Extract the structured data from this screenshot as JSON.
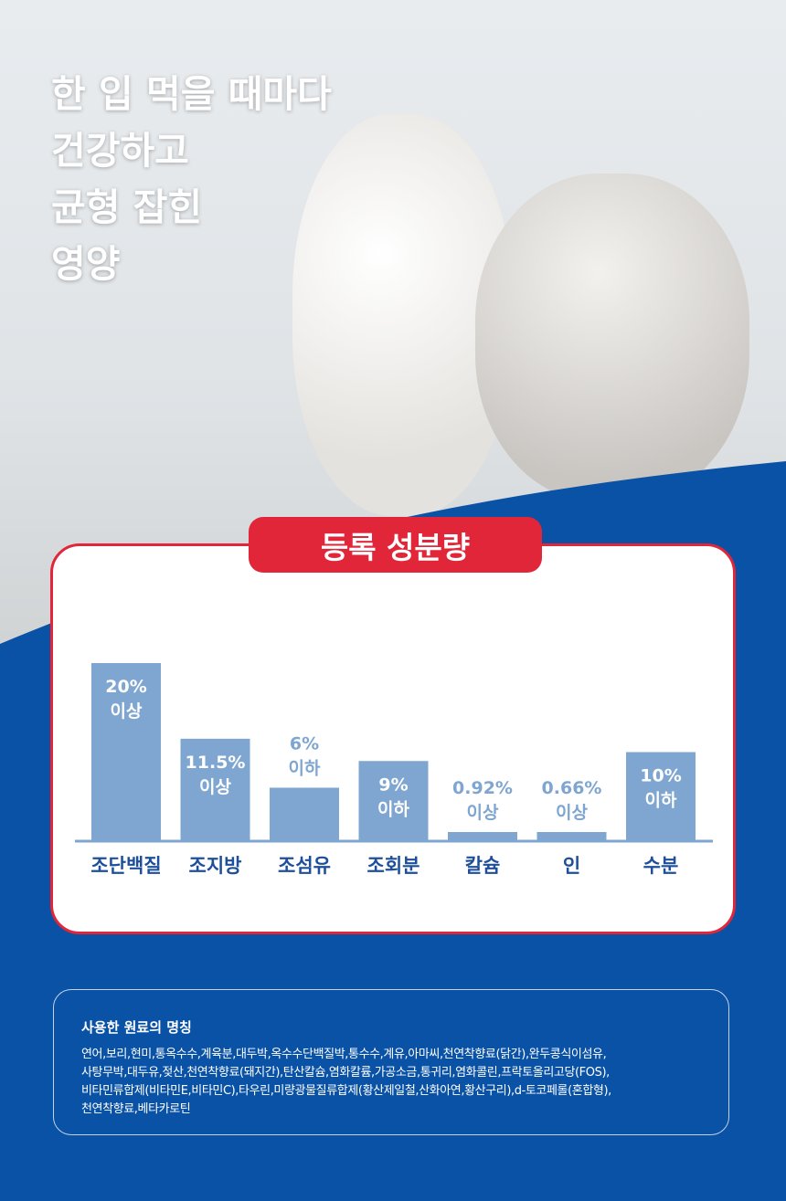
{
  "headline": [
    "한 입 먹을 때마다",
    "건강하고",
    "균형 잡힌",
    "영양"
  ],
  "section_title": "등록 성분량",
  "colors": {
    "brand_blue": "#0a52a6",
    "accent_red": "#e2263a",
    "bar": "#7ea6d1",
    "label_blue": "#1d4f9a"
  },
  "chart_data": {
    "type": "bar",
    "categories": [
      "조단백질",
      "조지방",
      "조섬유",
      "조회분",
      "칼슘",
      "인",
      "수분"
    ],
    "values": [
      20,
      11.5,
      6,
      9,
      0.92,
      0.66,
      10
    ],
    "data_labels": [
      [
        "20%",
        "이상"
      ],
      [
        "11.5%",
        "이상"
      ],
      [
        "6%",
        "이하"
      ],
      [
        "9%",
        "이하"
      ],
      [
        "0.92%",
        "이상"
      ],
      [
        "0.66%",
        "이상"
      ],
      [
        "10%",
        "이하"
      ]
    ],
    "label_inside": [
      true,
      true,
      false,
      true,
      false,
      false,
      true
    ],
    "grid": false
  },
  "ingredients": {
    "title": "사용한 원료의 명칭",
    "lines": [
      "연어,보리,현미,통옥수수,계육분,대두박,옥수수단백질박,통수수,계유,아마씨,천연착향료(닭간),완두콩식이섬유,",
      "사탕무박,대두유,젖산,천연착향료(돼지간),탄산칼슘,염화칼륨,가공소금,통귀리,염화콜린,프락토올리고당(FOS),",
      "비타민류합제(비타민E,비타민C),타우린,미량광물질류합제(황산제일철,산화아연,황산구리),d-토코페롤(혼합형),",
      "천연착향료,베타카로틴"
    ]
  }
}
